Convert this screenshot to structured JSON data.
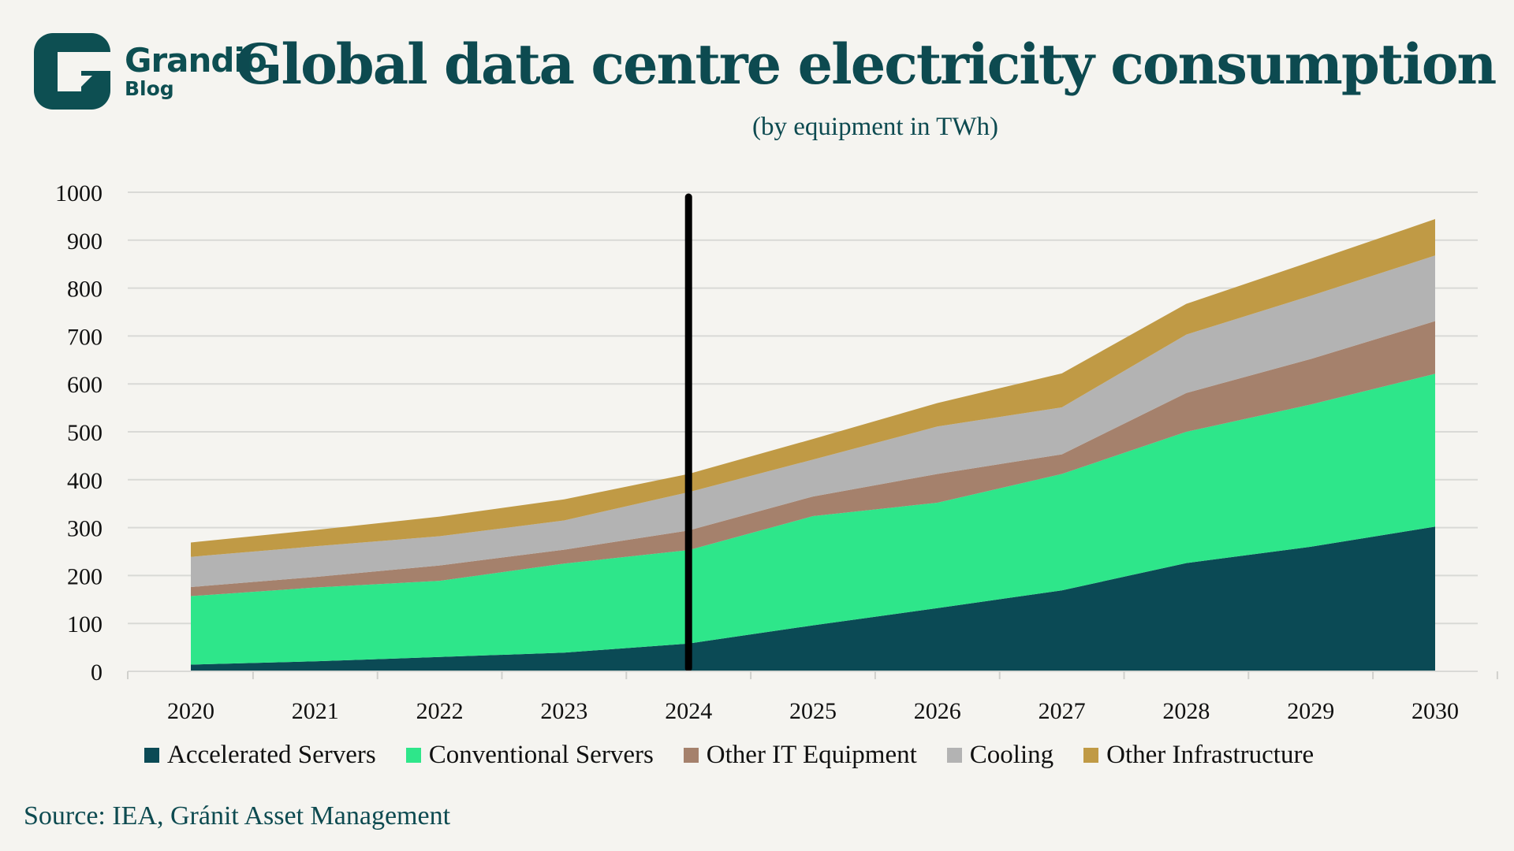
{
  "brand": {
    "name": "Grandio",
    "sub": "Blog",
    "icon": "grandio-g-logo"
  },
  "header": {
    "title": "Global data centre electricity consumption",
    "subtitle": "(by equipment in TWh)"
  },
  "source": "Source: IEA, Gránit Asset Management",
  "chart_data": {
    "type": "area",
    "stacked": true,
    "title": "Global data centre electricity consumption",
    "subtitle": "(by equipment in TWh)",
    "xlabel": "",
    "ylabel": "",
    "ylim": [
      0,
      1000
    ],
    "yticks": [
      0,
      100,
      200,
      300,
      400,
      500,
      600,
      700,
      800,
      900,
      1000
    ],
    "ytick_labels": [
      "0",
      "100",
      "200",
      "300",
      "400",
      "500",
      "600",
      "700",
      "800",
      "900",
      "1000"
    ],
    "categories": [
      "2020",
      "2021",
      "2022",
      "2023",
      "2024",
      "2025",
      "2026",
      "2027",
      "2028",
      "2029",
      "2030"
    ],
    "grid": true,
    "legend_position": "bottom",
    "annotations": [
      {
        "type": "vertical-line",
        "x": "2024",
        "color": "#000000"
      }
    ],
    "series": [
      {
        "name": "Accelerated Servers",
        "color": "#0b4a55",
        "values": [
          14,
          21,
          30,
          39,
          58,
          96,
          132,
          169,
          226,
          260,
          302
        ]
      },
      {
        "name": "Conventional Servers",
        "color": "#2ee68a",
        "values": [
          143,
          154,
          159,
          186,
          195,
          228,
          220,
          243,
          274,
          297,
          319
        ]
      },
      {
        "name": "Other IT Equipment",
        "color": "#a5816c",
        "values": [
          19,
          22,
          32,
          29,
          41,
          41,
          60,
          41,
          81,
          95,
          110
        ]
      },
      {
        "name": "Cooling",
        "color": "#b3b3b3",
        "values": [
          63,
          64,
          61,
          61,
          80,
          77,
          99,
          98,
          122,
          132,
          137
        ]
      },
      {
        "name": "Other Infrastructure",
        "color": "#c09a45",
        "values": [
          30,
          34,
          41,
          44,
          38,
          43,
          49,
          71,
          64,
          71,
          76
        ]
      }
    ]
  }
}
